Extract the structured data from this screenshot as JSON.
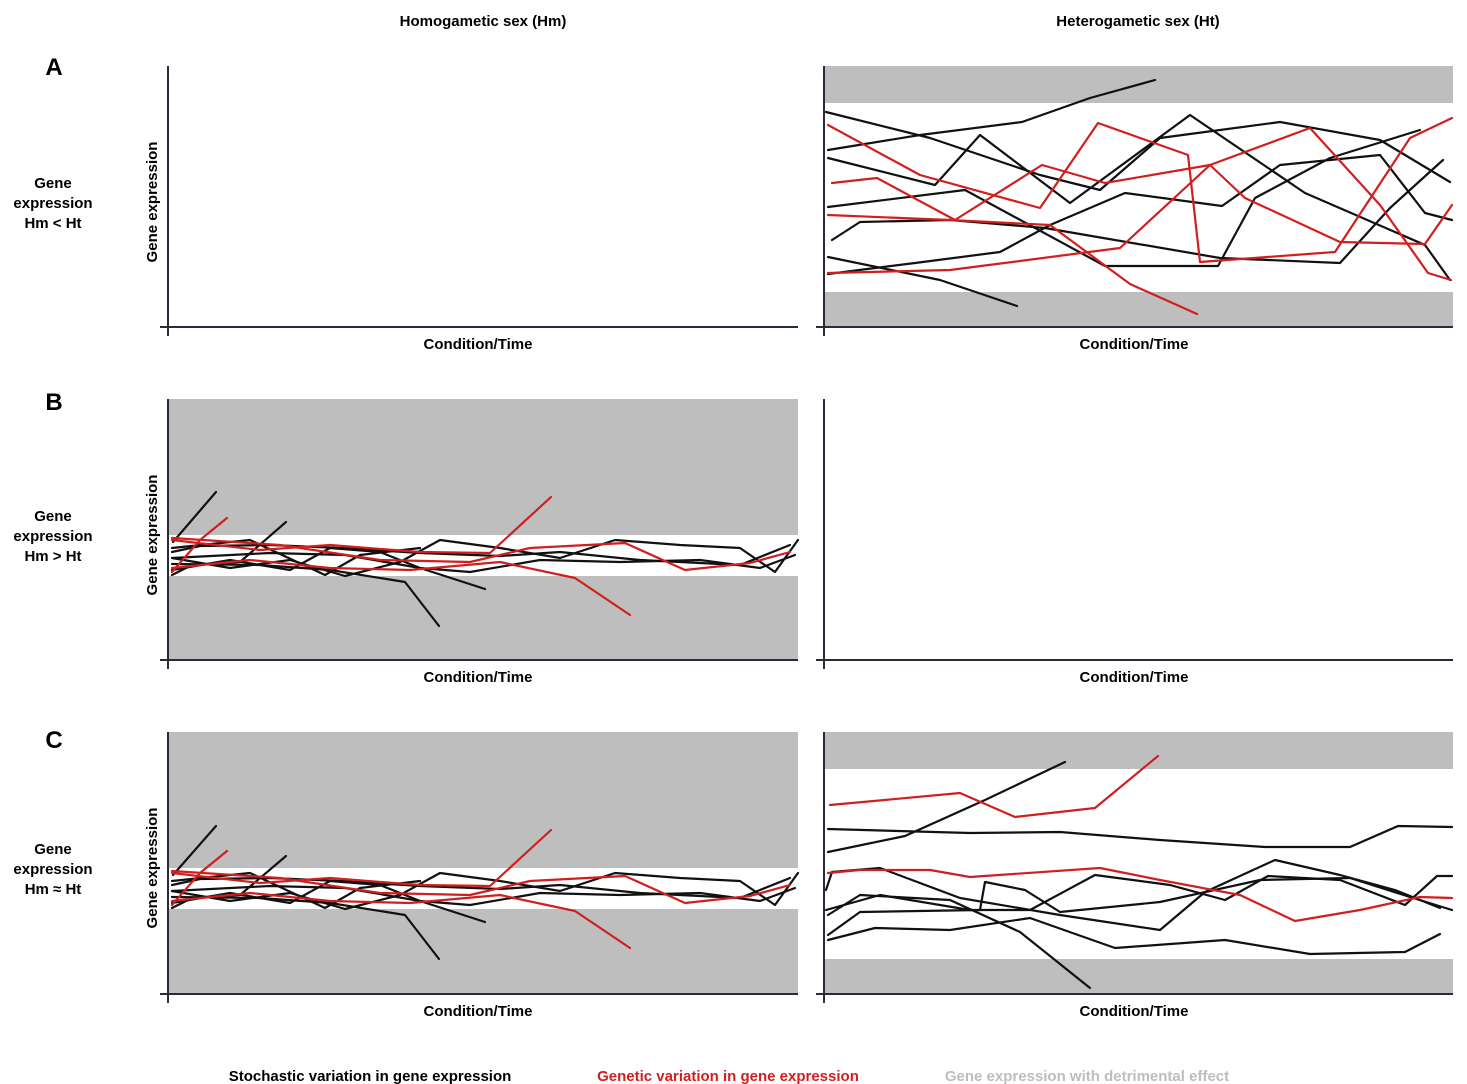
{
  "columns": [
    "Homogametic sex (Hm)",
    "Heterogametic sex (Ht)"
  ],
  "rows": [
    {
      "letter": "A",
      "label_lines": [
        "Gene",
        "expression",
        "Hm < Ht"
      ]
    },
    {
      "letter": "B",
      "label_lines": [
        "Gene",
        "expression",
        "Hm > Ht"
      ]
    },
    {
      "letter": "C",
      "label_lines": [
        "Gene",
        "expression",
        "Hm ≈ Ht"
      ]
    }
  ],
  "axes": {
    "x_label": "Condition/Time",
    "y_label": "Gene expression"
  },
  "legend": [
    {
      "label": "Stochastic variation in gene expression",
      "color": "#000000"
    },
    {
      "label": "Genetic variation in gene expression",
      "color": "#d11f1f"
    },
    {
      "label": "Gene expression with detrimental effect",
      "color": "#bdbdbd"
    }
  ],
  "colors": {
    "stochastic": "#111111",
    "genetic": "#d11f1f",
    "detrimental_band": "#bebebe",
    "axis": "#2a2a3a"
  }
}
